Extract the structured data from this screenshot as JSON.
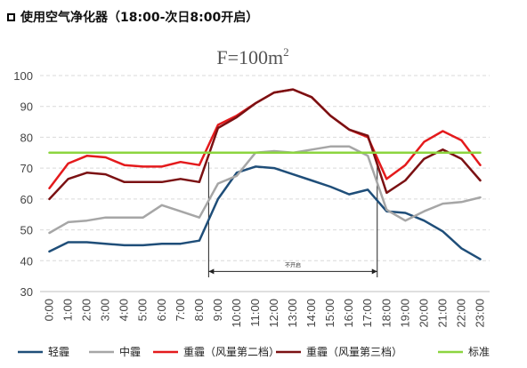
{
  "header": {
    "title": "使用空气净化器（18:00-次日8:00开启）",
    "checkbox_icon": "square-outline-icon"
  },
  "chart_data": {
    "type": "line",
    "title_main": "F=100m",
    "title_sup": "2",
    "categories": [
      "0:00",
      "1:00",
      "2:00",
      "3:00",
      "4:00",
      "5:00",
      "6:00",
      "7:00",
      "8:00",
      "9:00",
      "10:00",
      "11:00",
      "12:00",
      "13:00",
      "14:00",
      "15:00",
      "16:00",
      "17:00",
      "18:00",
      "19:00",
      "20:00",
      "21:00",
      "22:00",
      "23:00"
    ],
    "ylim": [
      30,
      100
    ],
    "yticks": [
      30,
      40,
      50,
      60,
      70,
      80,
      90,
      100
    ],
    "grid": "dashed-horizontal",
    "legend_position": "bottom",
    "series": [
      {
        "name": "轻霾",
        "color": "#1f4e79",
        "values": [
          43,
          46,
          46,
          45.5,
          45,
          45,
          45.5,
          45.5,
          46.5,
          60,
          68.5,
          70.5,
          70,
          68,
          66,
          64,
          61.5,
          63,
          56,
          55.5,
          53,
          49.5,
          44,
          40.5
        ]
      },
      {
        "name": "中霾",
        "color": "#a6a6a6",
        "values": [
          49,
          52.5,
          53,
          54,
          54,
          54,
          58,
          56,
          54,
          65,
          67.5,
          75,
          75.5,
          75,
          76,
          77,
          77,
          74,
          56.5,
          53,
          56,
          58.5,
          59,
          60.5
        ]
      },
      {
        "name": "重霾（风量第二档）",
        "color": "#e41a1c",
        "values": [
          63.5,
          71.5,
          74,
          73.5,
          71,
          70.5,
          70.5,
          72,
          71,
          84,
          87,
          91,
          94.5,
          95.5,
          93,
          87,
          82.5,
          80,
          66.5,
          71,
          78.5,
          82,
          79,
          71
        ]
      },
      {
        "name": "重霾（风量第三档）",
        "color": "#7b1113",
        "values": [
          60,
          66.5,
          68.5,
          68,
          65.5,
          65.5,
          65.5,
          66.5,
          65.5,
          83,
          86.5,
          91,
          94.5,
          95.5,
          93,
          87,
          82.5,
          80.5,
          62,
          66,
          73,
          76,
          73,
          66
        ]
      },
      {
        "name": "标准",
        "color": "#8cd53f",
        "values": [
          75,
          75,
          75,
          75,
          75,
          75,
          75,
          75,
          75,
          75,
          75,
          75,
          75,
          75,
          75,
          75,
          75,
          75,
          75,
          75,
          75,
          75,
          75,
          75
        ]
      }
    ],
    "annotation": {
      "text": "不开启",
      "from": "8:30",
      "to": "17:30",
      "y_value": 36.5
    }
  }
}
